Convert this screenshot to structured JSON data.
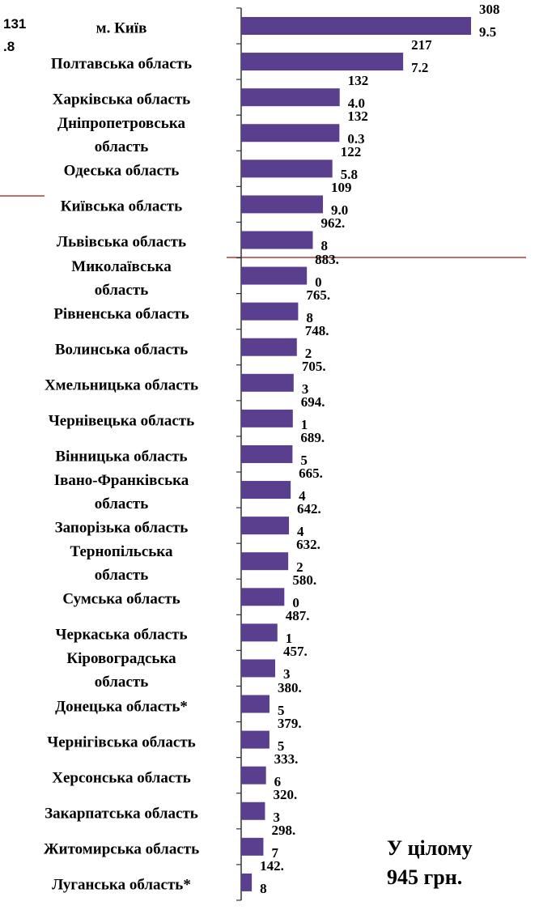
{
  "chart_data": {
    "type": "barh",
    "categories": [
      "м. Київ",
      "Полтавська область",
      "Харківська область",
      "Дніпропетровська\nобласть",
      "Одеська область",
      "Київська область",
      "Львівська область",
      "Миколаївська\nобласть",
      "Рівненська область",
      "Волинська область",
      "Хмельницька область",
      "Чернівецька область",
      "Вінницька область",
      "Івано-Франківська\nобласть",
      "Запорізька область",
      "Тернопільська\nобласть",
      "Сумська область",
      "Черкаська область",
      "Кіровоградська\nобласть",
      "Донецька область*",
      "Чернігівська область",
      "Херсонська область",
      "Закарпатська область",
      "Житомирська область",
      "Луганська область*"
    ],
    "values": [
      3089.5,
      2177.2,
      1324.0,
      1320.3,
      1225.8,
      1099.0,
      962.8,
      883.0,
      765.8,
      748.2,
      705.3,
      694.1,
      689.5,
      665.4,
      642.4,
      632.2,
      580.0,
      487.1,
      457.3,
      380.5,
      379.5,
      333.6,
      320.3,
      298.7,
      142.8
    ],
    "value_labels": [
      "3089.5",
      "2177.2",
      "1324.0",
      "1320.3",
      "1225.8",
      "1099.0",
      "962.8",
      "883.0",
      "765.8",
      "748.2",
      "705.3",
      "694.1",
      "689.5",
      "665.4",
      "642.4",
      "632.2",
      "580.0",
      "487.1",
      "457.3",
      "380.5",
      "379.5",
      "333.6",
      "320.3",
      "298.7",
      "142.8"
    ],
    "color": "#5a3f8e",
    "xlim": [
      0,
      3100
    ],
    "annotations": [
      "131\n.8",
      "У цілому\n945 грн."
    ]
  }
}
